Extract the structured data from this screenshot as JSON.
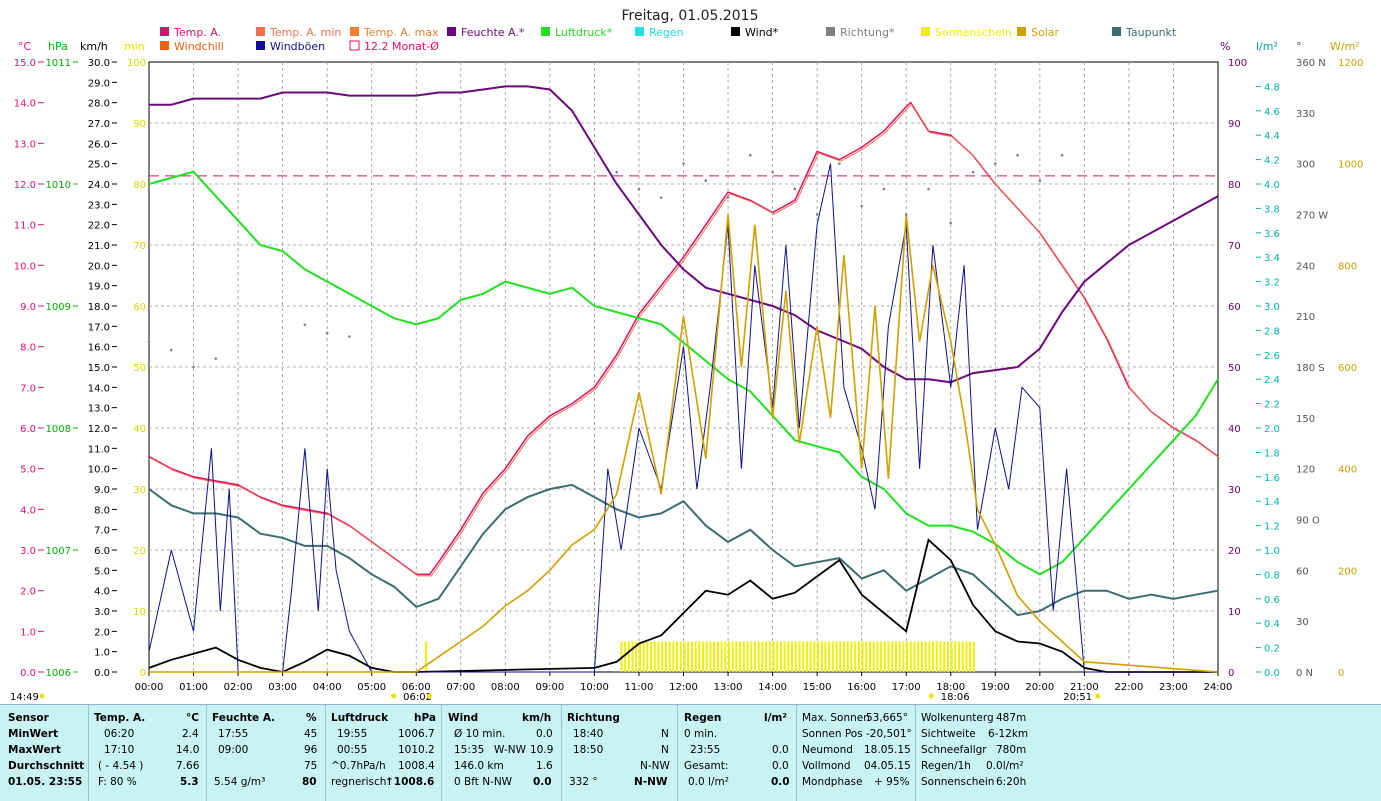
{
  "title": "Freitag, 01.05.2015",
  "unit_headers": [
    {
      "text": "°C",
      "color": "#e0107a"
    },
    {
      "text": "hPa",
      "color": "#00c000"
    },
    {
      "text": "km/h",
      "color": "#000000"
    },
    {
      "text": "min",
      "color": "#e8e800"
    },
    {
      "text": "%",
      "color": "#660066"
    },
    {
      "text": "l/m²",
      "color": "#00a0a0"
    },
    {
      "text": "°",
      "color": "#555555"
    },
    {
      "text": "W/m²",
      "color": "#c8a000"
    }
  ],
  "legend": [
    {
      "label": "Temp. A.",
      "color": "#e0106a"
    },
    {
      "label": "Temp. A. min",
      "color": "#f07050"
    },
    {
      "label": "Temp. A. max",
      "color": "#f08030"
    },
    {
      "label": "Feuchte A.*",
      "color": "#6a0a7a"
    },
    {
      "label": "Luftdruck*",
      "color": "#20e020"
    },
    {
      "label": "Regen",
      "color": "#20e0e0"
    },
    {
      "label": "Wind*",
      "color": "#000000"
    },
    {
      "label": "Richtung*",
      "color": "#808080"
    },
    {
      "label": "Sonnenschein",
      "color": "#f0f000"
    },
    {
      "label": "Solar",
      "color": "#d0a000"
    },
    {
      "label": "Taupunkt",
      "color": "#3a6e6e"
    },
    {
      "label": "Windchill",
      "color": "#f06010"
    },
    {
      "label": "Windböen",
      "color": "#101090"
    },
    {
      "label": "12.2 Monat-Ø",
      "color": "#e0106a"
    }
  ],
  "axes": {
    "temp_ticks": [
      "15.0",
      "14.0",
      "13.0",
      "12.0",
      "11.0",
      "10.0",
      "9.0",
      "8.0",
      "7.0",
      "6.0",
      "5.0",
      "4.0",
      "3.0",
      "2.0",
      "1.0",
      "0.0"
    ],
    "pressure_ticks": [
      "1011",
      "1010",
      "1009",
      "1008",
      "1007",
      "1006"
    ],
    "wind_ticks": [
      "30.0",
      "29.0",
      "28.0",
      "27.0",
      "26.0",
      "25.0",
      "24.0",
      "23.0",
      "22.0",
      "21.0",
      "20.0",
      "19.0",
      "18.0",
      "17.0",
      "16.0",
      "15.0",
      "14.0",
      "13.0",
      "12.0",
      "11.0",
      "10.0",
      "9.0",
      "8.0",
      "7.0",
      "6.0",
      "5.0",
      "4.0",
      "3.0",
      "2.0",
      "1.0",
      "0.0"
    ],
    "sun_ticks": [
      "100",
      "90",
      "80",
      "70",
      "60",
      "50",
      "40",
      "30",
      "20",
      "10",
      "0"
    ],
    "humidity_ticks": [
      "100",
      "90",
      "80",
      "70",
      "60",
      "50",
      "40",
      "30",
      "20",
      "10",
      "0"
    ],
    "rain_ticks": [
      "4.8",
      "4.6",
      "4.4",
      "4.2",
      "4.0",
      "3.8",
      "3.6",
      "3.4",
      "3.2",
      "3.0",
      "2.8",
      "2.6",
      "2.4",
      "2.2",
      "2.0",
      "1.8",
      "1.6",
      "1.4",
      "1.2",
      "1.0",
      "0.8",
      "0.6",
      "0.4",
      "0.2",
      "0.0"
    ],
    "dir_ticks": [
      "360 N",
      "330",
      "300",
      "270 W",
      "240",
      "210",
      "180 S",
      "150",
      "120",
      "90  O",
      "60",
      "30",
      "0  N"
    ],
    "solar_ticks": [
      "1200",
      "1000",
      "800",
      "600",
      "400",
      "200",
      "0"
    ],
    "time_ticks": [
      "00:00",
      "01:00",
      "02:00",
      "03:00",
      "04:00",
      "05:00",
      "06:00",
      "07:00",
      "08:00",
      "09:00",
      "10:00",
      "11:00",
      "12:00",
      "13:00",
      "14:00",
      "15:00",
      "16:00",
      "17:00",
      "18:00",
      "19:00",
      "20:00",
      "21:00",
      "22:00",
      "23:00",
      "24:00"
    ]
  },
  "markers": {
    "left_time": "14:49",
    "sunrise": "06:02",
    "sunset": "18:06",
    "now": "20:51"
  },
  "chart_data": {
    "type": "line",
    "x_unit": "hour",
    "temp_month_avg": 12.2,
    "series": [
      {
        "name": "Temp. A.",
        "unit": "°C",
        "x": [
          0,
          0.5,
          1,
          1.5,
          2,
          2.5,
          3,
          3.5,
          4,
          4.5,
          5,
          5.5,
          6,
          6.3,
          6.5,
          7,
          7.5,
          8,
          8.5,
          9,
          9.5,
          10,
          10.5,
          11,
          11.5,
          12,
          12.5,
          13,
          13.5,
          14,
          14.5,
          15,
          15.5,
          16,
          16.5,
          17,
          17.1,
          17.5,
          18,
          18.5,
          19,
          19.5,
          20,
          20.5,
          21,
          21.5,
          22,
          22.5,
          23,
          23.5,
          24
        ],
        "values": [
          5.3,
          5.0,
          4.8,
          4.7,
          4.6,
          4.3,
          4.1,
          4.0,
          3.9,
          3.6,
          3.2,
          2.8,
          2.4,
          2.4,
          2.7,
          3.5,
          4.4,
          5.0,
          5.8,
          6.3,
          6.6,
          7.0,
          7.8,
          8.8,
          9.5,
          10.2,
          11.0,
          11.8,
          11.6,
          11.3,
          11.6,
          12.8,
          12.6,
          12.9,
          13.3,
          13.9,
          14.0,
          13.3,
          13.2,
          12.7,
          12.0,
          11.4,
          10.8,
          10.0,
          9.2,
          8.2,
          7.0,
          6.4,
          6.0,
          5.7,
          5.3
        ]
      },
      {
        "name": "Luftdruck*",
        "unit": "hPa",
        "x": [
          0,
          0.5,
          1,
          1.5,
          2,
          2.5,
          3,
          3.5,
          4,
          4.5,
          5,
          5.5,
          6,
          6.5,
          7,
          7.5,
          8,
          8.5,
          9,
          9.5,
          10,
          10.5,
          11,
          11.5,
          12,
          12.5,
          13,
          13.5,
          14,
          14.5,
          15,
          15.5,
          16,
          16.5,
          17,
          17.5,
          18,
          18.5,
          19,
          19.5,
          20,
          20.5,
          21,
          21.5,
          22,
          22.5,
          23,
          23.5,
          24
        ],
        "values": [
          1010.0,
          1010.05,
          1010.1,
          1009.9,
          1009.7,
          1009.5,
          1009.45,
          1009.3,
          1009.2,
          1009.1,
          1009.0,
          1008.9,
          1008.85,
          1008.9,
          1009.05,
          1009.1,
          1009.2,
          1009.15,
          1009.1,
          1009.15,
          1009.0,
          1008.95,
          1008.9,
          1008.85,
          1008.7,
          1008.55,
          1008.4,
          1008.3,
          1008.1,
          1007.9,
          1007.85,
          1007.8,
          1007.6,
          1007.5,
          1007.3,
          1007.2,
          1007.2,
          1007.15,
          1007.05,
          1006.9,
          1006.8,
          1006.9,
          1007.1,
          1007.3,
          1007.5,
          1007.7,
          1007.9,
          1008.1,
          1008.4
        ]
      },
      {
        "name": "Feuchte A.*",
        "unit": "%",
        "x": [
          0,
          0.5,
          1,
          1.5,
          2,
          2.5,
          3,
          3.5,
          4,
          4.5,
          5,
          5.5,
          6,
          6.5,
          7,
          7.5,
          8,
          8.5,
          9,
          9.5,
          10,
          10.5,
          11,
          11.5,
          12,
          12.5,
          13,
          13.5,
          14,
          14.5,
          15,
          15.5,
          16,
          16.5,
          17,
          17.5,
          18,
          18.5,
          19,
          19.5,
          20,
          20.5,
          21,
          21.5,
          22,
          22.5,
          23,
          23.5,
          24
        ],
        "values": [
          93,
          93,
          94,
          94,
          94,
          94,
          95,
          95,
          95,
          94.5,
          94.5,
          94.5,
          94.5,
          95,
          95,
          95.5,
          96,
          96,
          95.5,
          92,
          86,
          80,
          75,
          70,
          66,
          63,
          62,
          61,
          60,
          58.5,
          56,
          54.5,
          53,
          50,
          48,
          48,
          47.5,
          49,
          49.5,
          50,
          53,
          59,
          64,
          67,
          70,
          72,
          74,
          76,
          78
        ]
      },
      {
        "name": "Taupunkt",
        "unit": "°C",
        "x": [
          0,
          0.5,
          1,
          1.5,
          2,
          2.5,
          3,
          3.5,
          4,
          4.5,
          5,
          5.5,
          6,
          6.5,
          7,
          7.5,
          8,
          8.5,
          9,
          9.5,
          10,
          10.5,
          11,
          11.5,
          12,
          12.5,
          13,
          13.5,
          14,
          14.5,
          15,
          15.5,
          16,
          16.5,
          17,
          17.5,
          18,
          18.5,
          19,
          19.5,
          20,
          20.5,
          21,
          21.5,
          22,
          22.5,
          23,
          23.5,
          24
        ],
        "values": [
          4.5,
          4.1,
          3.9,
          3.9,
          3.8,
          3.4,
          3.3,
          3.1,
          3.1,
          2.8,
          2.4,
          2.1,
          1.6,
          1.8,
          2.6,
          3.4,
          4.0,
          4.3,
          4.5,
          4.6,
          4.3,
          4.0,
          3.8,
          3.9,
          4.2,
          3.6,
          3.2,
          3.5,
          3.0,
          2.6,
          2.7,
          2.8,
          2.3,
          2.5,
          2.0,
          2.3,
          2.6,
          2.4,
          1.9,
          1.4,
          1.5,
          1.8,
          2.0,
          2.0,
          1.8,
          1.9,
          1.8,
          1.9,
          2.0
        ]
      },
      {
        "name": "Wind*",
        "unit": "km/h",
        "x": [
          0,
          0.5,
          1,
          1.5,
          2,
          2.5,
          3,
          3.5,
          4,
          4.5,
          5,
          5.5,
          6,
          10,
          10.5,
          11,
          11.5,
          12,
          12.5,
          13,
          13.5,
          14,
          14.5,
          15,
          15.5,
          16,
          16.5,
          17,
          17.5,
          18,
          18.5,
          19,
          19.5,
          20,
          20.5,
          21,
          21.5,
          22,
          24
        ],
        "values": [
          0.2,
          0.6,
          0.9,
          1.2,
          0.6,
          0.2,
          0.0,
          0.5,
          1.1,
          0.8,
          0.2,
          0.0,
          0.0,
          0.2,
          0.5,
          1.4,
          1.8,
          2.9,
          4.0,
          3.8,
          4.5,
          3.6,
          3.9,
          4.7,
          5.5,
          3.8,
          2.9,
          2.0,
          6.5,
          5.5,
          3.3,
          2.0,
          1.5,
          1.4,
          1.0,
          0.2,
          0.0,
          0.0,
          0.0
        ]
      },
      {
        "name": "Windböen",
        "unit": "km/h",
        "x": [
          0,
          0.5,
          1,
          1.4,
          1.6,
          1.8,
          2,
          2.5,
          3,
          3.2,
          3.5,
          3.8,
          4,
          4.2,
          4.5,
          5,
          6,
          10,
          10.3,
          10.6,
          11,
          11.5,
          12,
          12.3,
          12.6,
          13,
          13.3,
          13.6,
          14,
          14.3,
          14.6,
          15,
          15.3,
          15.6,
          16,
          16.3,
          16.6,
          17,
          17.3,
          17.6,
          18,
          18.3,
          18.6,
          19,
          19.3,
          19.6,
          20,
          20.3,
          20.6,
          21,
          21.5,
          24
        ],
        "values": [
          1,
          6,
          2,
          11,
          3,
          9,
          0,
          0,
          0,
          4,
          11,
          3,
          10,
          5,
          2,
          0,
          0,
          0,
          10,
          6,
          12,
          9,
          16,
          9,
          14,
          22,
          10,
          20,
          13,
          21,
          12,
          22,
          25,
          14,
          11,
          8,
          17,
          22,
          10,
          21,
          14,
          20,
          7,
          12,
          9,
          14,
          13,
          3,
          10,
          0,
          0,
          0
        ]
      },
      {
        "name": "Solar",
        "unit": "W/m²",
        "x": [
          0,
          6,
          6.5,
          7,
          7.5,
          8,
          8.5,
          9,
          9.5,
          10,
          10.5,
          11,
          11.5,
          12,
          12.5,
          13,
          13.3,
          13.6,
          14,
          14.3,
          14.6,
          15,
          15.3,
          15.6,
          16,
          16.3,
          16.6,
          17,
          17.3,
          17.6,
          18,
          18.3,
          18.6,
          19,
          19.5,
          20,
          20.5,
          21,
          24
        ],
        "values": [
          0,
          0,
          30,
          60,
          90,
          130,
          160,
          200,
          250,
          280,
          350,
          550,
          350,
          700,
          420,
          900,
          600,
          880,
          500,
          750,
          450,
          680,
          500,
          820,
          400,
          720,
          380,
          900,
          650,
          800,
          650,
          500,
          320,
          250,
          150,
          100,
          60,
          20,
          0
        ]
      },
      {
        "name": "Richtung*",
        "unit": "°",
        "x": [
          0,
          0.5,
          1,
          1.5,
          3.5,
          4,
          4.5,
          10.5,
          11,
          11.5,
          12,
          12.5,
          13,
          13.5,
          14,
          14.5,
          15,
          15.5,
          16,
          16.5,
          17,
          17.5,
          18,
          18.5,
          19,
          19.5,
          20,
          20.5
        ],
        "values": [
          195,
          190,
          180,
          185,
          205,
          200,
          198,
          295,
          285,
          280,
          300,
          290,
          280,
          305,
          295,
          285,
          270,
          300,
          275,
          285,
          270,
          285,
          265,
          295,
          300,
          305,
          290,
          305
        ]
      }
    ]
  },
  "panel": {
    "sensor": {
      "h": "Sensor",
      "rows": [
        "MinWert",
        "MaxWert",
        "Durchschnitt"
      ],
      "date": "01.05. 23:55"
    },
    "temp": {
      "h": "Temp. A.",
      "unit": "°C",
      "r1a": "06:20",
      "r1b": "2.4",
      "r2a": "17:10",
      "r2b": "14.0",
      "r3a": "( - 4.54 )",
      "r3b": "7.66",
      "r4a": "F: 80 %",
      "r4b": "5.3"
    },
    "hum": {
      "h": "Feuchte A.",
      "unit": "%",
      "r1a": "17:55",
      "r1b": "45",
      "r2a": "09:00",
      "r2b": "96",
      "r3b": "75",
      "r4a": "5.54 g/m³",
      "r4b": "80"
    },
    "press": {
      "h": "Luftdruck",
      "unit": "hPa",
      "r1a": "19:55",
      "r1b": "1006.7",
      "r2a": "00:55",
      "r2b": "1010.2",
      "r3a": "^0.7hPa/h",
      "r3b": "1008.4",
      "r4a": "regnerisch",
      "r4b": "↑1008.6"
    },
    "wind": {
      "h": "Wind",
      "unit": "km/h",
      "r1a": "Ø 10 min.",
      "r1b": "0.0",
      "r2a": "15:35",
      "r2m": "W-NW",
      "r2b": "10.9",
      "r3a": "146.0 km",
      "r3b": "1.6",
      "r4a": "0 Bft N-NW",
      "r4b": "0.0"
    },
    "dir": {
      "h": "Richtung",
      "r1a": "18:40",
      "r1b": "N",
      "r2a": "18:50",
      "r2b": "N",
      "r3b": "N-NW",
      "r4a": "332 °",
      "r4b": "N-NW"
    },
    "rain": {
      "h": "Regen",
      "unit": "l/m²",
      "r1a": "0 min.",
      "r2a": "23:55",
      "r2b": "0.0",
      "r3a": "Gesamt:",
      "r3b": "0.0",
      "r4a": "0.0 l/m²",
      "r4b": "0.0"
    },
    "astro": {
      "l1": "Max. Sonnen",
      "v1": "53,665°",
      "l2": "Sonnen Pos",
      "v2": "-20,501°",
      "l3": "Neumond",
      "v3": "18.05.15",
      "l4": "Vollmond",
      "v4": "04.05.15",
      "l5": "Mondphase",
      "v5": "+ 95%"
    },
    "misc": {
      "l1": "Wolkenunterg",
      "v1": "487m",
      "l2": "Sichtweite",
      "v2": "6-12km",
      "l3": "Schneefallgr",
      "v3": "780m",
      "l4": "Regen/1h",
      "v4": "0.0l/m²",
      "l5": "Sonnenschein",
      "v5": "6:20h"
    }
  }
}
